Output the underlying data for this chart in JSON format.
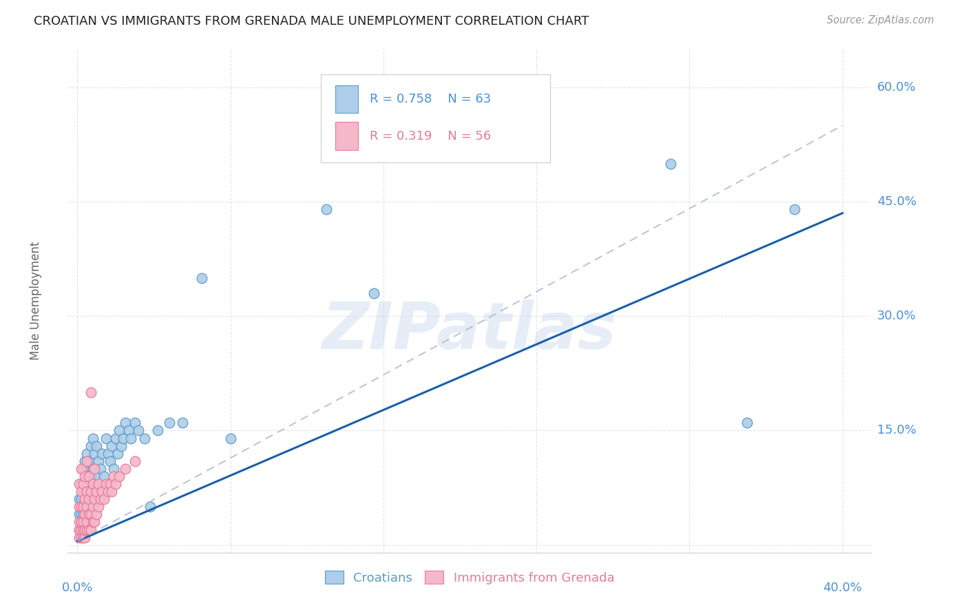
{
  "title": "CROATIAN VS IMMIGRANTS FROM GRENADA MALE UNEMPLOYMENT CORRELATION CHART",
  "source": "Source: ZipAtlas.com",
  "ylabel": "Male Unemployment",
  "yticks": [
    0.0,
    0.15,
    0.3,
    0.45,
    0.6
  ],
  "ytick_labels": [
    "",
    "15.0%",
    "30.0%",
    "45.0%",
    "60.0%"
  ],
  "xticks": [
    0.0,
    0.08,
    0.16,
    0.24,
    0.32,
    0.4
  ],
  "xlim": [
    -0.005,
    0.415
  ],
  "ylim": [
    -0.01,
    0.65
  ],
  "croatians_R": 0.758,
  "croatians_N": 63,
  "grenada_R": 0.319,
  "grenada_N": 56,
  "blue_scatter_face": "#aecde8",
  "blue_scatter_edge": "#5b9dc9",
  "pink_scatter_face": "#f5b8c8",
  "pink_scatter_edge": "#e8799a",
  "blue_line_color": "#1a5fa8",
  "pink_line_color": "#b0b8c8",
  "axis_label_color": "#4a90d9",
  "grid_color": "#dde4ef",
  "title_color": "#222222",
  "source_color": "#999999",
  "ylabel_color": "#666666",
  "watermark_color": "#c8d8ec",
  "watermark_text": "ZIPatlas",
  "legend_box_edge": "#cccccc",
  "croatians_x": [
    0.001,
    0.001,
    0.001,
    0.002,
    0.002,
    0.002,
    0.002,
    0.003,
    0.003,
    0.003,
    0.003,
    0.004,
    0.004,
    0.004,
    0.004,
    0.005,
    0.005,
    0.005,
    0.005,
    0.006,
    0.006,
    0.006,
    0.007,
    0.007,
    0.007,
    0.008,
    0.008,
    0.008,
    0.009,
    0.009,
    0.01,
    0.01,
    0.011,
    0.012,
    0.013,
    0.014,
    0.015,
    0.016,
    0.017,
    0.018,
    0.019,
    0.02,
    0.021,
    0.022,
    0.023,
    0.024,
    0.025,
    0.027,
    0.028,
    0.03,
    0.032,
    0.035,
    0.038,
    0.042,
    0.048,
    0.055,
    0.065,
    0.08,
    0.13,
    0.155,
    0.31,
    0.35,
    0.375
  ],
  "croatians_y": [
    0.02,
    0.04,
    0.06,
    0.02,
    0.04,
    0.06,
    0.08,
    0.02,
    0.04,
    0.07,
    0.1,
    0.03,
    0.06,
    0.08,
    0.11,
    0.04,
    0.07,
    0.09,
    0.12,
    0.05,
    0.08,
    0.11,
    0.06,
    0.09,
    0.13,
    0.07,
    0.1,
    0.14,
    0.08,
    0.12,
    0.09,
    0.13,
    0.11,
    0.1,
    0.12,
    0.09,
    0.14,
    0.12,
    0.11,
    0.13,
    0.1,
    0.14,
    0.12,
    0.15,
    0.13,
    0.14,
    0.16,
    0.15,
    0.14,
    0.16,
    0.15,
    0.14,
    0.05,
    0.15,
    0.16,
    0.16,
    0.35,
    0.14,
    0.44,
    0.33,
    0.5,
    0.16,
    0.44
  ],
  "grenada_x": [
    0.001,
    0.001,
    0.001,
    0.001,
    0.001,
    0.002,
    0.002,
    0.002,
    0.002,
    0.002,
    0.002,
    0.003,
    0.003,
    0.003,
    0.003,
    0.003,
    0.004,
    0.004,
    0.004,
    0.004,
    0.004,
    0.005,
    0.005,
    0.005,
    0.005,
    0.005,
    0.006,
    0.006,
    0.006,
    0.006,
    0.007,
    0.007,
    0.007,
    0.007,
    0.008,
    0.008,
    0.008,
    0.009,
    0.009,
    0.009,
    0.01,
    0.01,
    0.011,
    0.011,
    0.012,
    0.013,
    0.014,
    0.015,
    0.016,
    0.017,
    0.018,
    0.019,
    0.02,
    0.022,
    0.025,
    0.03
  ],
  "grenada_y": [
    0.01,
    0.02,
    0.03,
    0.05,
    0.08,
    0.01,
    0.02,
    0.03,
    0.05,
    0.07,
    0.1,
    0.01,
    0.02,
    0.03,
    0.05,
    0.08,
    0.01,
    0.02,
    0.04,
    0.06,
    0.09,
    0.02,
    0.03,
    0.05,
    0.07,
    0.11,
    0.02,
    0.04,
    0.06,
    0.09,
    0.02,
    0.04,
    0.07,
    0.2,
    0.03,
    0.05,
    0.08,
    0.03,
    0.06,
    0.1,
    0.04,
    0.07,
    0.05,
    0.08,
    0.06,
    0.07,
    0.06,
    0.08,
    0.07,
    0.08,
    0.07,
    0.09,
    0.08,
    0.09,
    0.1,
    0.11
  ],
  "blue_line_x": [
    0.0,
    0.4
  ],
  "blue_line_y": [
    0.005,
    0.435
  ],
  "pink_line_x": [
    0.0,
    0.4
  ],
  "pink_line_y": [
    0.005,
    0.55
  ]
}
